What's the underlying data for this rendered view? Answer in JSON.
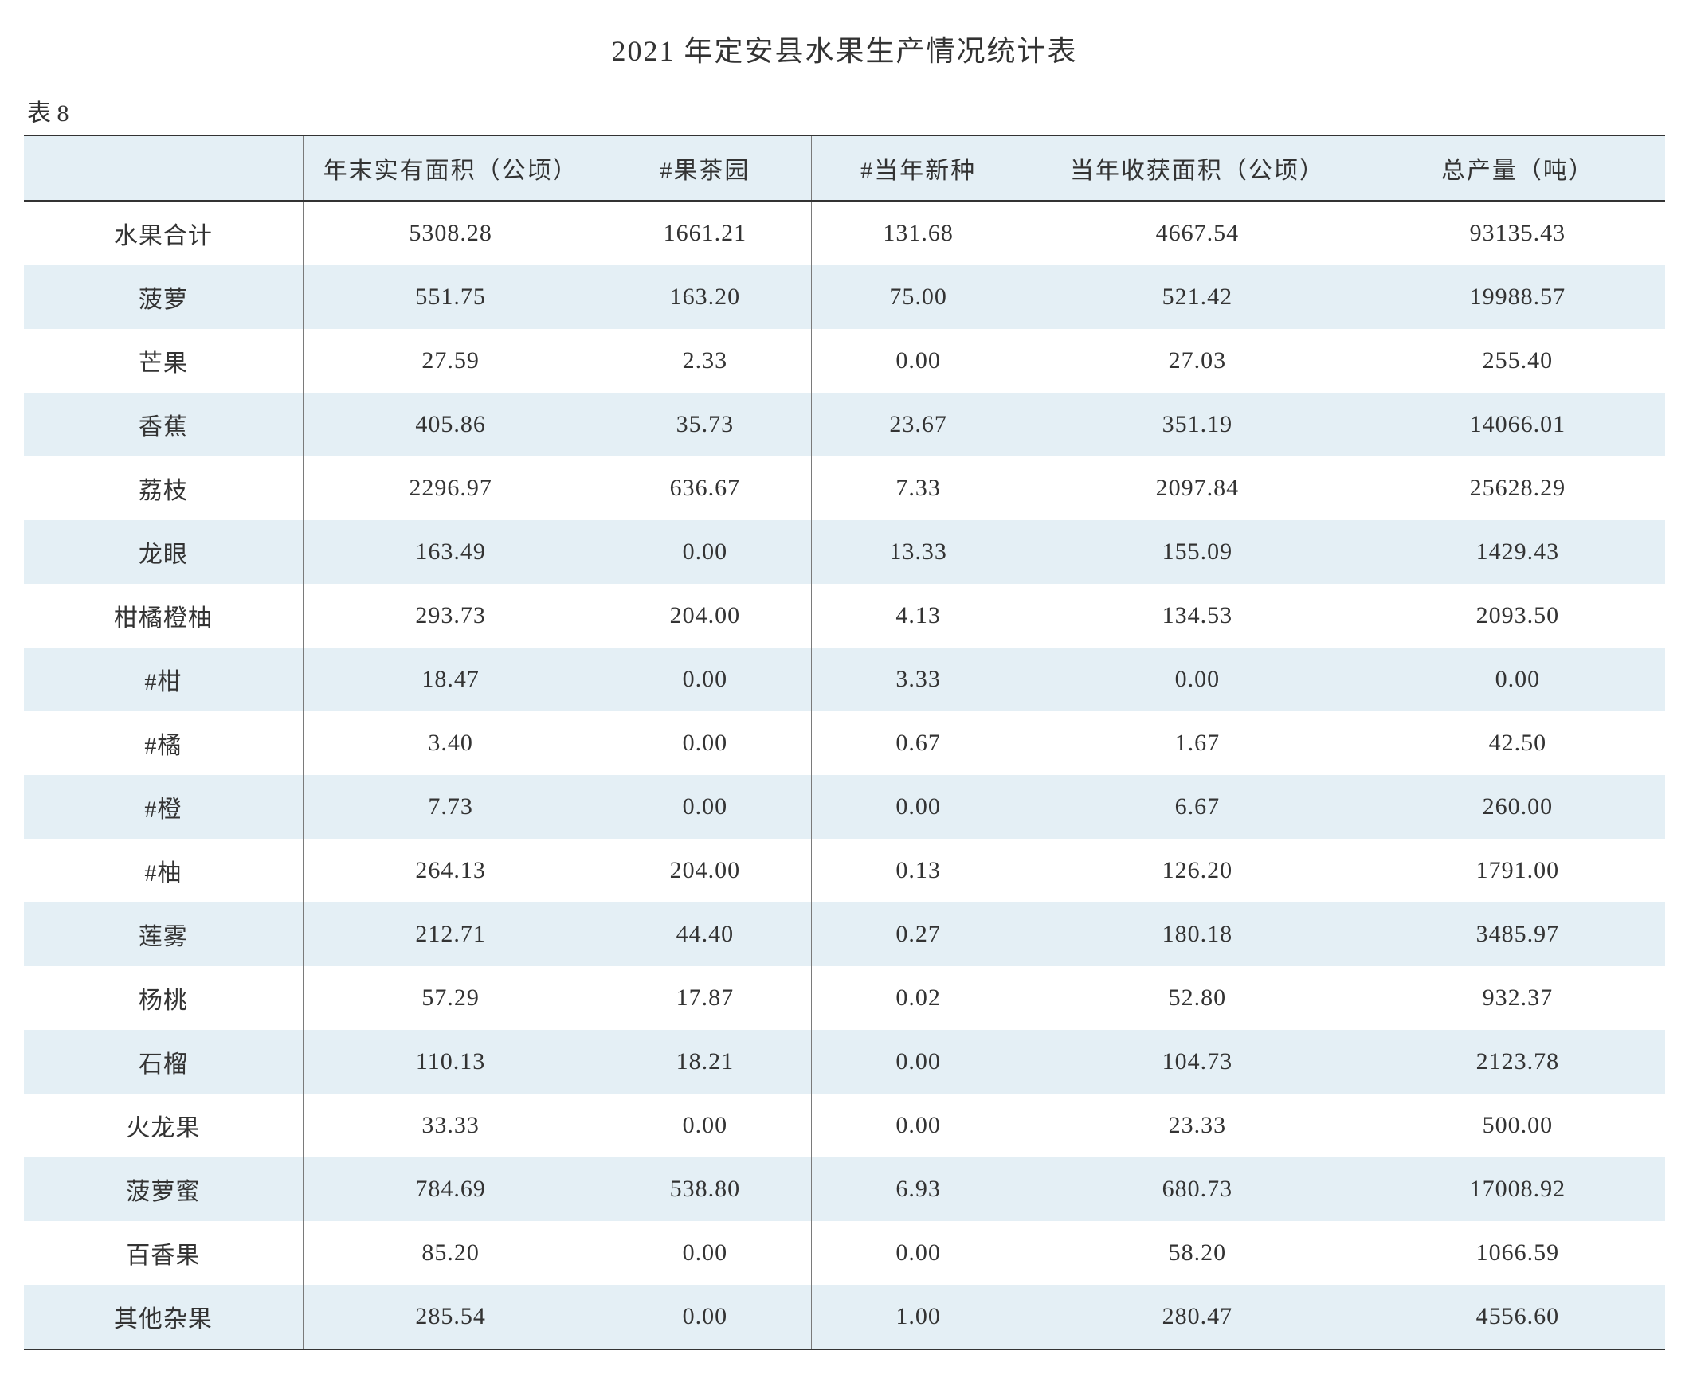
{
  "title": "2021 年定安县水果生产情况统计表",
  "table_label": "表 8",
  "columns": [
    "",
    "年末实有面积（公顷）",
    "#果茶园",
    "#当年新种",
    "当年收获面积（公顷）",
    "总产量（吨）"
  ],
  "rows": [
    [
      "水果合计",
      "5308.28",
      "1661.21",
      "131.68",
      "4667.54",
      "93135.43"
    ],
    [
      "菠萝",
      "551.75",
      "163.20",
      "75.00",
      "521.42",
      "19988.57"
    ],
    [
      "芒果",
      "27.59",
      "2.33",
      "0.00",
      "27.03",
      "255.40"
    ],
    [
      "香蕉",
      "405.86",
      "35.73",
      "23.67",
      "351.19",
      "14066.01"
    ],
    [
      "荔枝",
      "2296.97",
      "636.67",
      "7.33",
      "2097.84",
      "25628.29"
    ],
    [
      "龙眼",
      "163.49",
      "0.00",
      "13.33",
      "155.09",
      "1429.43"
    ],
    [
      "柑橘橙柚",
      "293.73",
      "204.00",
      "4.13",
      "134.53",
      "2093.50"
    ],
    [
      "#柑",
      "18.47",
      "0.00",
      "3.33",
      "0.00",
      "0.00"
    ],
    [
      "#橘",
      "3.40",
      "0.00",
      "0.67",
      "1.67",
      "42.50"
    ],
    [
      "#橙",
      "7.73",
      "0.00",
      "0.00",
      "6.67",
      "260.00"
    ],
    [
      "#柚",
      "264.13",
      "204.00",
      "0.13",
      "126.20",
      "1791.00"
    ],
    [
      "莲雾",
      "212.71",
      "44.40",
      "0.27",
      "180.18",
      "3485.97"
    ],
    [
      "杨桃",
      "57.29",
      "17.87",
      "0.02",
      "52.80",
      "932.37"
    ],
    [
      "石榴",
      "110.13",
      "18.21",
      "0.00",
      "104.73",
      "2123.78"
    ],
    [
      "火龙果",
      "33.33",
      "0.00",
      "0.00",
      "23.33",
      "500.00"
    ],
    [
      "菠萝蜜",
      "784.69",
      "538.80",
      "6.93",
      "680.73",
      "17008.92"
    ],
    [
      "百香果",
      "85.20",
      "0.00",
      "0.00",
      "58.20",
      "1066.59"
    ],
    [
      "其他杂果",
      "285.54",
      "0.00",
      "1.00",
      "280.47",
      "4556.60"
    ]
  ],
  "styling": {
    "type": "table",
    "header_bg": "#e4eff5",
    "row_even_bg": "#e4eff5",
    "row_odd_bg": "#ffffff",
    "border_outer_color": "#333333",
    "border_inner_color": "#7a7a7a",
    "text_color": "#333333",
    "title_fontsize": 36,
    "cell_fontsize": 30,
    "column_widths_pct": [
      17,
      18,
      13,
      13,
      21,
      18
    ]
  }
}
